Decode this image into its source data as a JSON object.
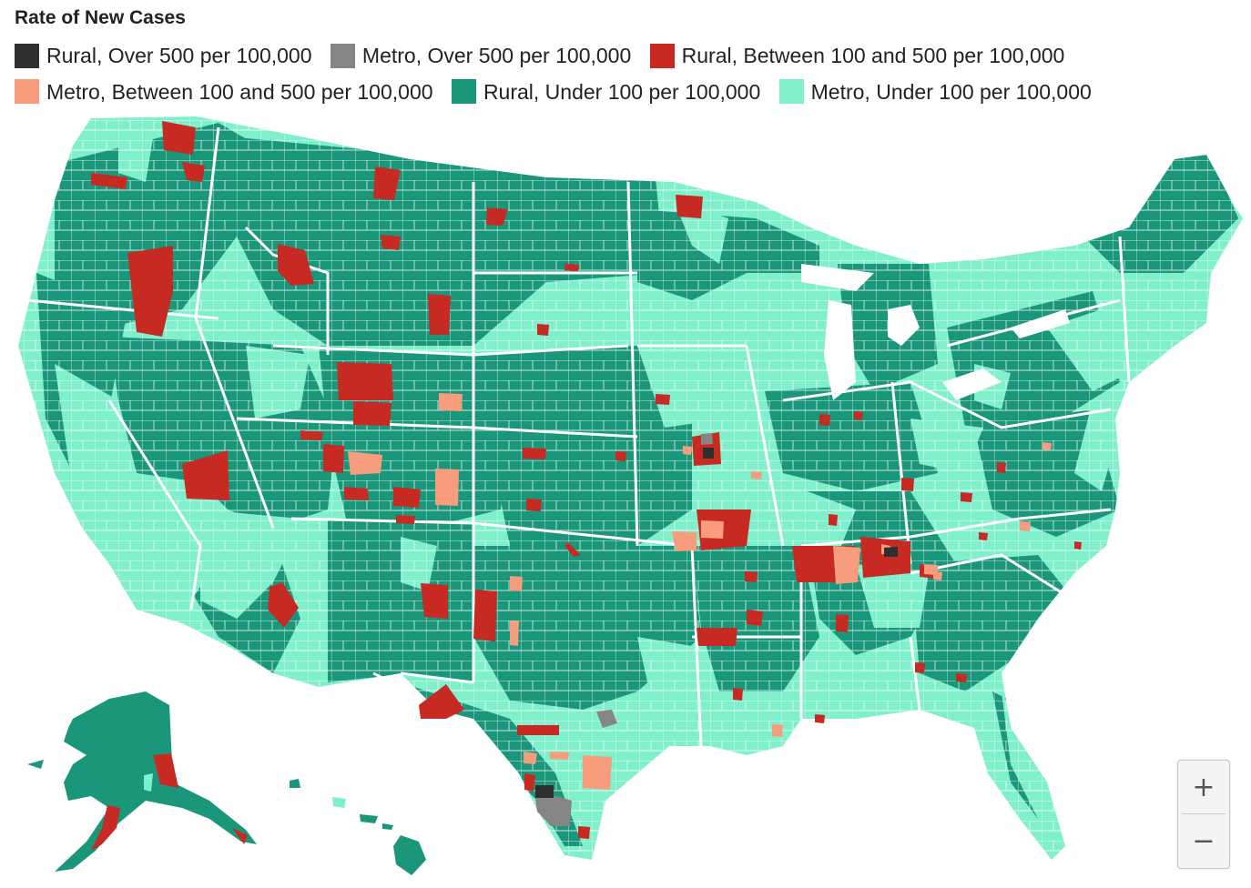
{
  "title": "Rate of New Cases",
  "colors": {
    "rural_over_500": "#2f2f2f",
    "metro_over_500": "#858585",
    "rural_100_500": "#c62a23",
    "metro_100_500": "#f89c7e",
    "rural_under_100": "#1a967a",
    "metro_under_100": "#7ff0cb",
    "border": "#ffffff"
  },
  "legend": [
    {
      "key": "rural_over_500",
      "label": "Rural, Over 500 per 100,000",
      "color": "#2f2f2f"
    },
    {
      "key": "metro_over_500",
      "label": "Metro, Over 500 per 100,000",
      "color": "#858585"
    },
    {
      "key": "rural_100_500",
      "label": "Rural, Between 100 and 500 per 100,000",
      "color": "#c62a23"
    },
    {
      "key": "metro_100_500",
      "label": "Metro, Between 100 and 500 per 100,000",
      "color": "#f89c7e"
    },
    {
      "key": "rural_under_100",
      "label": "Rural, Under 100 per 100,000",
      "color": "#1a967a"
    },
    {
      "key": "metro_under_100",
      "label": "Metro, Under 100 per 100,000",
      "color": "#7ff0cb"
    }
  ],
  "zoom": {
    "in_label": "+",
    "out_label": "−"
  }
}
